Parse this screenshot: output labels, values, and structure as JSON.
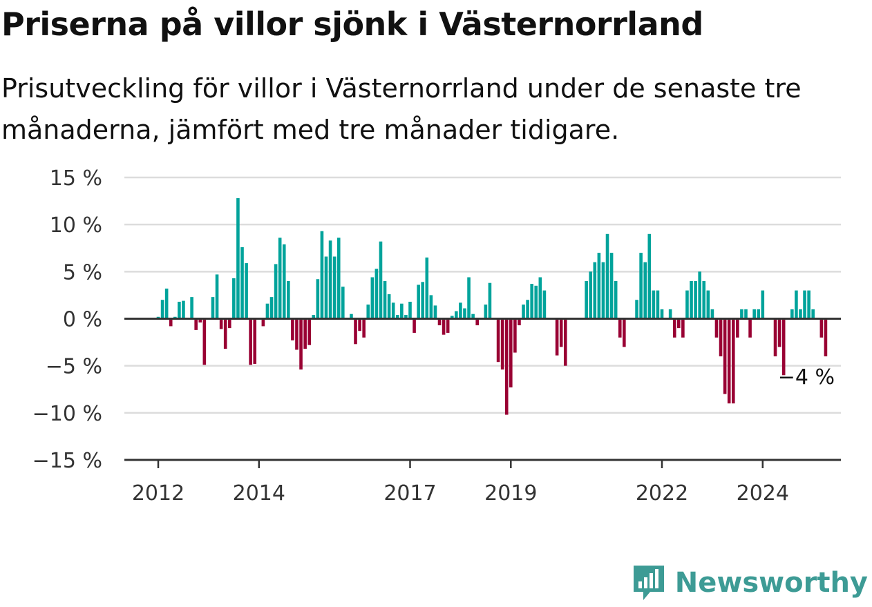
{
  "title": "Priserna på villor sjönk i Västernorrland",
  "subtitle": "Prisutveckling för villor i Västernorrland under de senaste tre månaderna, jämfört med tre månader tidigare.",
  "brand": "Newsworthy",
  "colors": {
    "positive": "#00a39b",
    "negative": "#990033",
    "grid": "#dcdcdc",
    "axis": "#333333",
    "brand": "#3d9b95"
  },
  "chart_data": {
    "type": "bar",
    "title": "Priserna på villor sjönk i Västernorrland",
    "subtitle": "Prisutveckling för villor i Västernorrland under de senaste tre månaderna, jämfört med tre månader tidigare.",
    "x_start": "2012-01",
    "x_end": "2025-06",
    "ylim": [
      -15,
      15
    ],
    "yticks": [
      15,
      10,
      5,
      0,
      -5,
      -10,
      -15
    ],
    "ytick_labels": [
      "15 %",
      "10 %",
      "5 %",
      "0 %",
      "−5 %",
      "−10 %",
      "−15 %"
    ],
    "xticks": [
      {
        "date": "2012-01",
        "label": "2012"
      },
      {
        "date": "2014-01",
        "label": "2014"
      },
      {
        "date": "2017-01",
        "label": "2017"
      },
      {
        "date": "2019-01",
        "label": "2019"
      },
      {
        "date": "2022-01",
        "label": "2022"
      },
      {
        "date": "2024-01",
        "label": "2024"
      }
    ],
    "annotation": {
      "date": "2024-09",
      "value": -4,
      "label": "−4 %"
    },
    "grid": true,
    "values": [
      0.2,
      2.0,
      3.2,
      -0.8,
      0.2,
      1.8,
      1.9,
      0,
      2.3,
      -1.2,
      -0.4,
      -4.9,
      0,
      2.3,
      4.7,
      -1.1,
      -3.2,
      -1.0,
      4.3,
      12.8,
      7.6,
      5.9,
      -4.9,
      -4.8,
      0,
      -0.8,
      1.6,
      2.3,
      5.8,
      8.6,
      7.9,
      4.0,
      -2.3,
      -3.3,
      -5.4,
      -3.2,
      -2.8,
      0.4,
      4.2,
      9.3,
      6.6,
      8.3,
      6.6,
      8.6,
      3.4,
      0,
      0.5,
      -2.7,
      -1.3,
      -2.0,
      1.5,
      4.4,
      5.3,
      8.2,
      4.0,
      2.6,
      1.7,
      0.4,
      1.6,
      0.4,
      1.8,
      -1.5,
      3.6,
      3.9,
      6.5,
      2.5,
      1.4,
      -0.7,
      -1.7,
      -1.5,
      0.3,
      0.8,
      1.7,
      1.1,
      4.4,
      0.5,
      -0.7,
      0.1,
      1.5,
      3.8,
      0,
      -4.6,
      -5.4,
      -10.2,
      -7.3,
      -3.6,
      -0.7,
      1.5,
      2.0,
      3.7,
      3.5,
      4.4,
      3.0,
      0,
      0,
      -3.9,
      -3.0,
      -5.0,
      0,
      0,
      0,
      0,
      4.0,
      5.0,
      6.0,
      7.0,
      6.0,
      9.0,
      7.0,
      4.0,
      -2.0,
      -3.0,
      0,
      0,
      2.0,
      7.0,
      6.0,
      9.0,
      3.0,
      3.0,
      1.0,
      0,
      1.0,
      -2.0,
      -1.0,
      -2.0,
      3.0,
      4.0,
      4.0,
      5.0,
      4.0,
      3.0,
      1.0,
      -2.0,
      -4.0,
      -8.0,
      -9.0,
      -9.0,
      -2.0,
      1.0,
      1.0,
      -2.0,
      1.0,
      1.0,
      3.0,
      0,
      0,
      -4.0,
      -3.0,
      -6.0,
      0,
      1.0,
      3.0,
      1.0,
      3.0,
      3.0,
      1.0,
      0,
      -2.0,
      -4.0
    ]
  }
}
